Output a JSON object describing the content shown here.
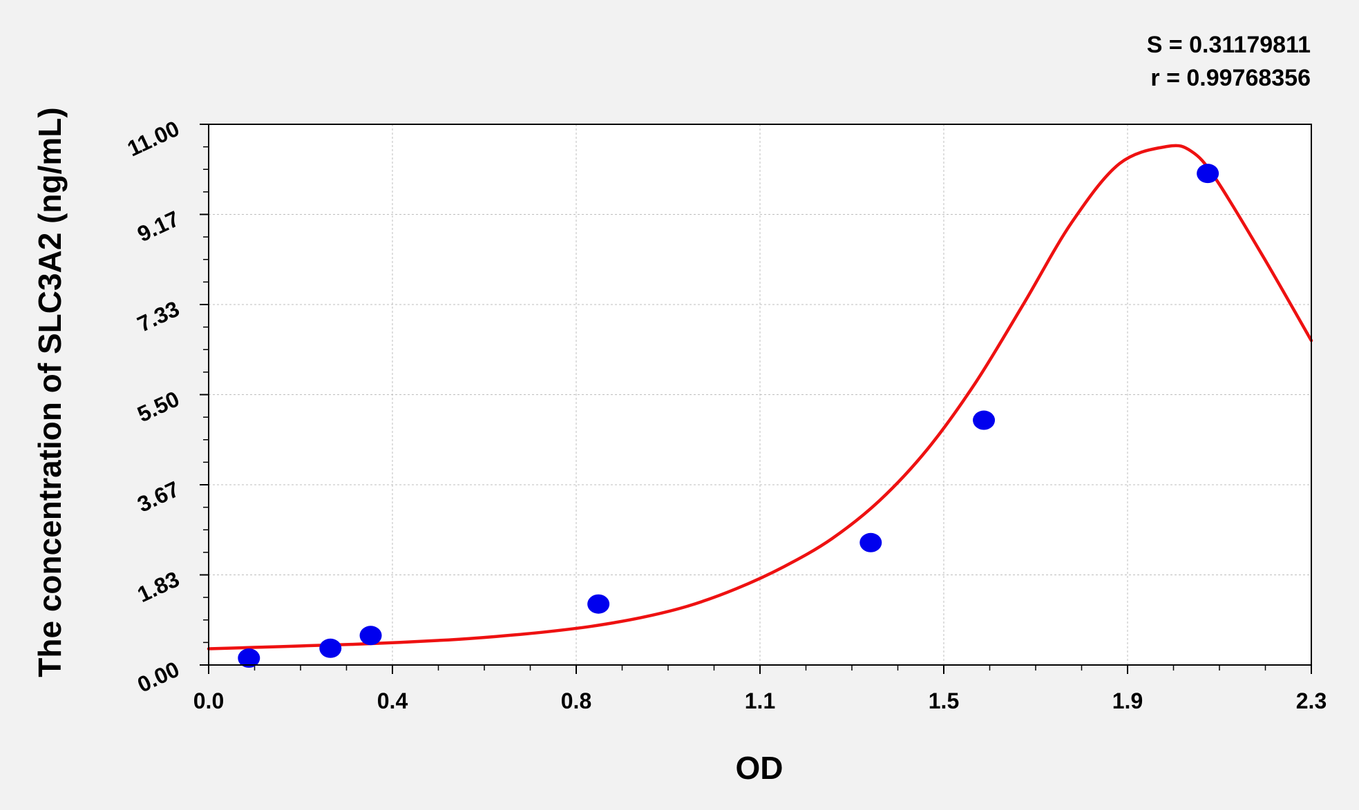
{
  "chart_data": {
    "type": "scatter",
    "title": "",
    "xlabel": "OD",
    "ylabel": "The concentration of SLC3A2 (ng/mL)",
    "xlim": [
      0.0,
      2.3
    ],
    "ylim": [
      0.0,
      11.0
    ],
    "x_ticks": [
      "0.0",
      "0.4",
      "0.8",
      "1.1",
      "1.5",
      "1.9",
      "2.3"
    ],
    "y_ticks": [
      "0.00",
      "1.83",
      "3.67",
      "5.50",
      "7.33",
      "9.17",
      "11.00"
    ],
    "grid": true,
    "stats": {
      "s_label": "S = 0.31179811",
      "r_label": "r = 0.99768356"
    },
    "colors": {
      "points": "#0000ee",
      "curve": "#ee1111",
      "background": "#f2f2f2",
      "plot_area": "#ffffff"
    },
    "series": [
      {
        "kind": "points",
        "x": [
          0.084,
          0.254,
          0.338,
          0.813,
          1.381,
          1.617,
          2.084
        ],
        "y": [
          0.14,
          0.34,
          0.6,
          1.24,
          2.49,
          4.98,
          10.0
        ]
      },
      {
        "kind": "fit-curve",
        "x": [
          0.0,
          0.1,
          0.2,
          0.3,
          0.4,
          0.5,
          0.6,
          0.7,
          0.8,
          0.9,
          1.0,
          1.1,
          1.2,
          1.3,
          1.4,
          1.5,
          1.6,
          1.7,
          1.8,
          1.9,
          2.0,
          2.05,
          2.1,
          2.2,
          2.3
        ],
        "y": [
          0.33,
          0.36,
          0.39,
          0.42,
          0.46,
          0.51,
          0.58,
          0.67,
          0.79,
          0.96,
          1.2,
          1.55,
          2.0,
          2.57,
          3.35,
          4.4,
          5.75,
          7.35,
          9.0,
          10.2,
          10.55,
          10.45,
          9.9,
          8.3,
          6.6
        ]
      }
    ]
  }
}
